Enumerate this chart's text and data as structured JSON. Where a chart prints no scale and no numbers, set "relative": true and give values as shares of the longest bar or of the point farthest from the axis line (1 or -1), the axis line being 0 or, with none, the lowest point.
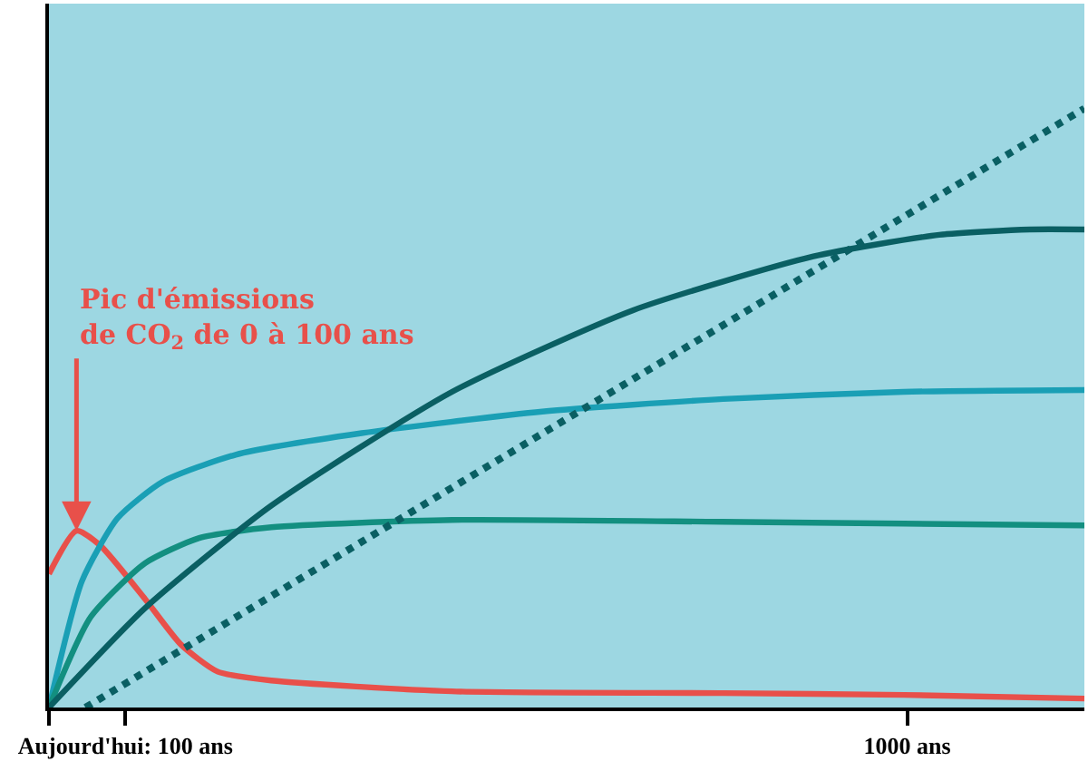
{
  "chart_data": {
    "type": "line",
    "relative": true,
    "tick_labels": "x",
    "xlim": [
      12,
      1204
    ],
    "xticks": [
      {
        "value": 12,
        "label": null
      },
      {
        "value": 100,
        "label": "Aujourd'hui: 100 ans"
      },
      {
        "value": 1000,
        "label": "1000 ans"
      }
    ],
    "series": [
      {
        "color": "#e8504a",
        "line_style": "solid",
        "x": [
          12,
          43.7,
          70.7,
          122.7,
          164,
          206,
          268,
          476,
          788,
          996,
          1204
        ],
        "values": [
          0.223,
          0.295,
          0.271,
          0.181,
          0.105,
          0.06,
          0.045,
          0.027,
          0.024,
          0.021,
          0.015
        ]
      },
      {
        "color": "#1a9fb5",
        "line_style": "solid",
        "x": [
          12,
          50,
          91,
          143,
          227,
          372,
          580,
          788,
          996,
          1204
        ],
        "values": [
          0,
          0.211,
          0.316,
          0.377,
          0.422,
          0.458,
          0.494,
          0.515,
          0.527,
          0.53
        ]
      },
      {
        "color": "#138f80",
        "line_style": "solid",
        "x": [
          12,
          60,
          122.7,
          185,
          268,
          476,
          788,
          996,
          1204
        ],
        "values": [
          0,
          0.151,
          0.241,
          0.283,
          0.301,
          0.313,
          0.31,
          0.307,
          0.304
        ]
      },
      {
        "color": "#0a5f63",
        "line_style": "solid",
        "x": [
          12,
          122.7,
          268,
          476,
          684,
          892,
          1037,
          1141,
          1204
        ],
        "values": [
          0,
          0.166,
          0.337,
          0.527,
          0.663,
          0.753,
          0.789,
          0.798,
          0.798
        ]
      },
      {
        "color": "#0a5f63",
        "line_style": "dotted",
        "x": [
          54,
          1204
        ],
        "values": [
          0,
          1
        ]
      }
    ],
    "annotations": [
      {
        "text": "Pic d'émissions\nde CO$_{2}$ de 0 à 100 ans",
        "x": 43.7,
        "y": 0.295
      }
    ]
  }
}
